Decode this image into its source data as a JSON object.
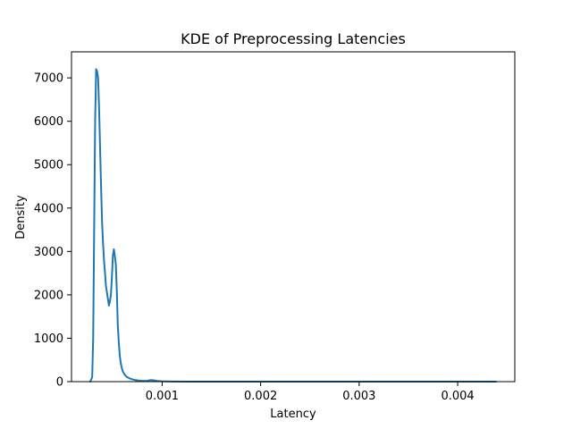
{
  "chart_data": {
    "type": "line",
    "title": "KDE of Preprocessing Latencies",
    "xlabel": "Latency",
    "ylabel": "Density",
    "xlim": [
      8e-05,
      0.00458
    ],
    "ylim": [
      0,
      7600
    ],
    "xticks": [
      0.001,
      0.002,
      0.003,
      0.004
    ],
    "xtick_labels": [
      "0.001",
      "0.002",
      "0.003",
      "0.004"
    ],
    "yticks": [
      0,
      1000,
      2000,
      3000,
      4000,
      5000,
      6000,
      7000
    ],
    "ytick_labels": [
      "0",
      "1000",
      "2000",
      "3000",
      "4000",
      "5000",
      "6000",
      "7000"
    ],
    "grid": false,
    "legend": "none",
    "series": [
      {
        "color": "#1f77b4",
        "x": [
          0.00027,
          0.00029,
          0.0003,
          0.00031,
          0.00032,
          0.00033,
          0.00034,
          0.00035,
          0.00036,
          0.00037,
          0.00038,
          0.00039,
          0.0004,
          0.00041,
          0.00042,
          0.00043,
          0.00044,
          0.00045,
          0.00046,
          0.00047,
          0.00048,
          0.00049,
          0.0005,
          0.00051,
          0.00052,
          0.00053,
          0.00054,
          0.00055,
          0.00056,
          0.00057,
          0.00058,
          0.00059,
          0.0006,
          0.00062,
          0.00064,
          0.00067,
          0.0007,
          0.00073,
          0.00076,
          0.00079,
          0.00082,
          0.00085,
          0.00088,
          0.00091,
          0.00095,
          0.001,
          0.0011,
          0.0013,
          0.0016,
          0.002,
          0.0025,
          0.003,
          0.0035,
          0.004,
          0.00439
        ],
        "y": [
          0,
          100,
          1000,
          3500,
          6000,
          7200,
          7150,
          7000,
          6300,
          5400,
          4500,
          3700,
          3200,
          2800,
          2500,
          2200,
          2050,
          1900,
          1750,
          1850,
          2000,
          2400,
          2900,
          3050,
          2900,
          2700,
          2100,
          1300,
          900,
          600,
          430,
          320,
          240,
          160,
          110,
          75,
          50,
          35,
          25,
          20,
          18,
          20,
          35,
          30,
          15,
          8,
          3,
          1,
          0,
          0,
          0,
          0,
          0,
          0,
          0
        ]
      }
    ]
  }
}
